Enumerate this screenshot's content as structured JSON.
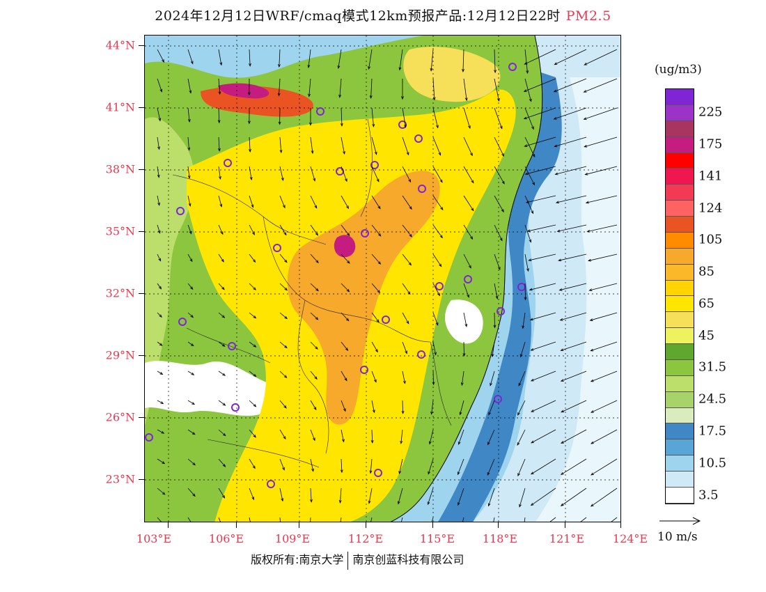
{
  "title": {
    "text": "2024年12月12日WRF/cmaq模式12km预报产品:12月12日22时",
    "species": "PM2.5",
    "species_color": "#e8384f"
  },
  "axes": {
    "lat_labels": [
      "44°N",
      "41°N",
      "38°N",
      "35°N",
      "32°N",
      "29°N",
      "26°N",
      "23°N"
    ],
    "lon_labels": [
      "103°E",
      "106°E",
      "109°E",
      "112°E",
      "115°E",
      "118°E",
      "121°E",
      "124°E"
    ],
    "label_color": "#e8384f"
  },
  "legend": {
    "unit": "(ug/m3)",
    "colors": [
      "#7f25d6",
      "#9b33c9",
      "#a83460",
      "#c41d7f",
      "#ff0000",
      "#f01650",
      "#f23a55",
      "#ff6262",
      "#ea5422",
      "#ff8c00",
      "#f6a92b",
      "#fbb92a",
      "#ffd400",
      "#ffe500",
      "#f6e05a",
      "#eef25c",
      "#5fa72f",
      "#8cc63e",
      "#bcde6a",
      "#a8d36a",
      "#d9ecbe",
      "#3f88c5",
      "#5aa5d8",
      "#9ed4ee",
      "#cfeaf6",
      "#ffffff"
    ],
    "labels": [
      {
        "text": "225",
        "index": 1
      },
      {
        "text": "175",
        "index": 3
      },
      {
        "text": "141",
        "index": 5
      },
      {
        "text": "124",
        "index": 7
      },
      {
        "text": "105",
        "index": 9
      },
      {
        "text": "85",
        "index": 11
      },
      {
        "text": "65",
        "index": 13
      },
      {
        "text": "45",
        "index": 15
      },
      {
        "text": "31.5",
        "index": 17
      },
      {
        "text": "24.5",
        "index": 19
      },
      {
        "text": "17.5",
        "index": 21
      },
      {
        "text": "10.5",
        "index": 23
      },
      {
        "text": "3.5",
        "index": 25
      }
    ]
  },
  "wind_reference": {
    "label": "10 m/s"
  },
  "footer": {
    "left": "版权所有:南京大学",
    "right": "南京创蓝科技有限公司"
  }
}
